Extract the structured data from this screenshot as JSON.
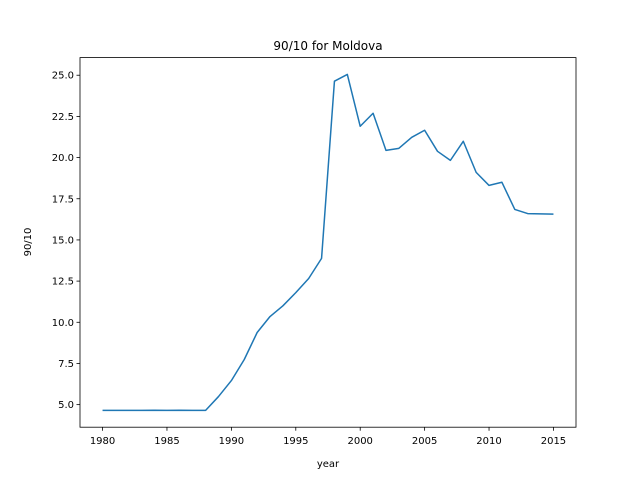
{
  "chart_data": {
    "type": "line",
    "title": "90/10 for Moldova",
    "x_label": "year",
    "y_label": "90/10",
    "x": [
      1980,
      1981,
      1982,
      1983,
      1984,
      1985,
      1986,
      1987,
      1988,
      1989,
      1990,
      1991,
      1992,
      1993,
      1994,
      1995,
      1996,
      1997,
      1998,
      1999,
      2000,
      2001,
      2002,
      2003,
      2004,
      2005,
      2006,
      2007,
      2008,
      2009,
      2010,
      2011,
      2012,
      2013,
      2014,
      2015
    ],
    "series": [
      {
        "name": "90/10",
        "color": "#1f77b4",
        "values": [
          4.65,
          4.65,
          4.65,
          4.65,
          4.66,
          4.65,
          4.66,
          4.65,
          4.65,
          5.49,
          6.46,
          7.74,
          9.38,
          10.35,
          11.0,
          11.8,
          12.66,
          13.88,
          24.64,
          25.05,
          21.9,
          22.69,
          20.44,
          20.56,
          21.23,
          21.66,
          20.38,
          19.83,
          20.99,
          19.1,
          18.31,
          18.5,
          16.85,
          16.6,
          16.58,
          16.57
        ]
      }
    ],
    "xlim": [
      1978.25,
      2016.75
    ],
    "xticks": [
      1980,
      1985,
      1990,
      1995,
      2000,
      2005,
      2010,
      2015
    ],
    "ylim": [
      3.63,
      26.07
    ],
    "yticks": [
      {
        "value": 5,
        "label": "5.0"
      },
      7.5,
      {
        "value": 10,
        "label": "10.0"
      },
      12.5,
      {
        "value": 15,
        "label": "15.0"
      },
      17.5,
      {
        "value": 20,
        "label": "20.0"
      },
      22.5,
      {
        "value": 25,
        "label": "25.0"
      }
    ],
    "grid": false
  }
}
